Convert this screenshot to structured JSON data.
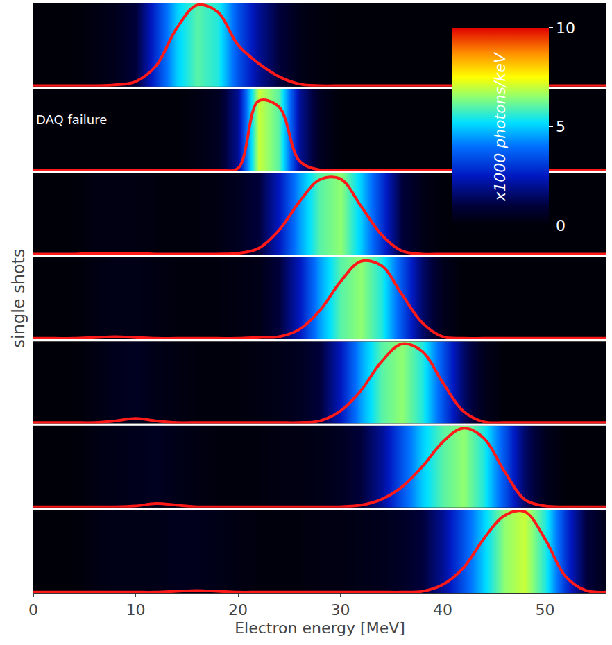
{
  "chart_data": {
    "type": "heatmap",
    "x_label": "Electron energy [MeV]",
    "y_label": "single shots",
    "tick_labels": "x",
    "xlim": [
      0,
      56
    ],
    "xticks": [
      0,
      10,
      20,
      30,
      40,
      50
    ],
    "ylim": [
      0,
      1
    ],
    "x": [
      0,
      2,
      4,
      6,
      8,
      10,
      12,
      14,
      16,
      18,
      20,
      22,
      24,
      26,
      28,
      30,
      32,
      34,
      36,
      38,
      40,
      42,
      44,
      46,
      48,
      50,
      52,
      54,
      56
    ],
    "colorbar": {
      "title": "x1000 photons/keV",
      "range": [
        0,
        10
      ],
      "ticks": [
        0,
        5,
        10
      ]
    },
    "series": [
      {
        "color": "#ff1a1a",
        "values": [
          0.01,
          0.01,
          0.01,
          0.01,
          0.02,
          0.06,
          0.25,
          0.7,
          0.98,
          0.9,
          0.5,
          0.28,
          0.12,
          0.03,
          0.01,
          0.01,
          0.01,
          0.01,
          0.01,
          0.01,
          0.01,
          0.01,
          0.01,
          0.01,
          0.01,
          0.01,
          0.01,
          0.01,
          0.01
        ],
        "cells": [
          0,
          0,
          0,
          0.2,
          0.4,
          1,
          3,
          5,
          6,
          5.5,
          3.5,
          2,
          1,
          0.3,
          0.1,
          0,
          0,
          0,
          0,
          0,
          0,
          0,
          0,
          0,
          0,
          0,
          0,
          0,
          0
        ]
      },
      {
        "color": "#ff1a1a",
        "annotation": "DAQ failure",
        "values": [
          0.01,
          0.01,
          0.01,
          0.01,
          0.01,
          0.01,
          0.01,
          0.01,
          0.01,
          0.01,
          0.03,
          0.85,
          0.78,
          0.12,
          0.01,
          0.01,
          0.01,
          0.01,
          0.01,
          0.01,
          0.01,
          0.01,
          0.01,
          0.01,
          0.01,
          0.01,
          0.01,
          0.01,
          0.01
        ],
        "cells": [
          0,
          0,
          0,
          0,
          0,
          0,
          0,
          0,
          0.2,
          0.5,
          2,
          7,
          6,
          2,
          0.5,
          0,
          0,
          0,
          0,
          0,
          0,
          0,
          0,
          0,
          0,
          0,
          0,
          0,
          0
        ]
      },
      {
        "color": "#ff1a1a",
        "values": [
          0.01,
          0.01,
          0.01,
          0.02,
          0.02,
          0.02,
          0.01,
          0.01,
          0.01,
          0.01,
          0.02,
          0.08,
          0.3,
          0.65,
          0.92,
          0.93,
          0.6,
          0.25,
          0.05,
          0.01,
          0.01,
          0.01,
          0.01,
          0.01,
          0.01,
          0.01,
          0.01,
          0.01,
          0.01
        ],
        "cells": [
          0,
          0,
          0,
          0.2,
          0.2,
          0.2,
          0.1,
          0.1,
          0.1,
          0.2,
          0.5,
          1,
          2.5,
          4.5,
          6,
          6.5,
          5,
          3,
          1,
          0.3,
          0,
          0,
          0,
          0,
          0,
          0,
          0,
          0,
          0
        ]
      },
      {
        "color": "#ff1a1a",
        "values": [
          0.01,
          0.01,
          0.01,
          0.02,
          0.03,
          0.02,
          0.01,
          0.01,
          0.01,
          0.01,
          0.01,
          0.02,
          0.03,
          0.12,
          0.35,
          0.7,
          0.95,
          0.9,
          0.55,
          0.2,
          0.03,
          0.01,
          0.01,
          0.01,
          0.01,
          0.01,
          0.01,
          0.01,
          0.01
        ],
        "cells": [
          0,
          0,
          0,
          0.2,
          0.3,
          0.3,
          0.2,
          0.1,
          0.1,
          0.1,
          0.2,
          0.3,
          1,
          2.5,
          4.5,
          6,
          6.5,
          5.5,
          3.5,
          1.5,
          0.4,
          0,
          0,
          0,
          0,
          0,
          0,
          0,
          0
        ]
      },
      {
        "color": "#ff1a1a",
        "values": [
          0.01,
          0.01,
          0.01,
          0.01,
          0.03,
          0.06,
          0.03,
          0.01,
          0.01,
          0.01,
          0.01,
          0.01,
          0.01,
          0.01,
          0.03,
          0.15,
          0.4,
          0.75,
          0.97,
          0.88,
          0.5,
          0.15,
          0.02,
          0.01,
          0.01,
          0.01,
          0.01,
          0.01,
          0.01
        ],
        "cells": [
          0,
          0,
          0,
          0.2,
          0.4,
          0.5,
          0.3,
          0.2,
          0.1,
          0.1,
          0.1,
          0.2,
          0.3,
          0.5,
          1,
          2.5,
          4.5,
          6,
          6.5,
          5.5,
          3.5,
          1.5,
          0.4,
          0,
          0,
          0,
          0,
          0,
          0
        ]
      },
      {
        "color": "#ff1a1a",
        "values": [
          0.01,
          0.01,
          0.01,
          0.01,
          0.01,
          0.02,
          0.05,
          0.03,
          0.01,
          0.01,
          0.01,
          0.01,
          0.01,
          0.01,
          0.01,
          0.01,
          0.03,
          0.1,
          0.25,
          0.5,
          0.8,
          0.97,
          0.85,
          0.45,
          0.1,
          0.02,
          0.01,
          0.01,
          0.01
        ],
        "cells": [
          0,
          0,
          0,
          0.2,
          0.3,
          0.4,
          0.5,
          0.3,
          0.2,
          0.1,
          0.1,
          0.1,
          0.2,
          0.2,
          0.3,
          0.5,
          1,
          2,
          3.5,
          5,
          6,
          6.5,
          5.5,
          3.5,
          1.5,
          0.4,
          0,
          0,
          0
        ]
      },
      {
        "color": "#ff1a1a",
        "values": [
          0.01,
          0.01,
          0.01,
          0.01,
          0.01,
          0.01,
          0.01,
          0.02,
          0.03,
          0.02,
          0.01,
          0.01,
          0.01,
          0.01,
          0.01,
          0.01,
          0.01,
          0.01,
          0.01,
          0.02,
          0.1,
          0.3,
          0.65,
          0.93,
          0.98,
          0.65,
          0.2,
          0.03,
          0.01
        ],
        "cells": [
          0,
          0,
          0,
          0.2,
          0.3,
          0.3,
          0.3,
          0.4,
          0.4,
          0.3,
          0.2,
          0.1,
          0.1,
          0.1,
          0.2,
          0.2,
          0.3,
          0.4,
          0.6,
          1,
          2,
          3.5,
          5,
          6.5,
          7,
          5.5,
          3,
          1,
          0.3
        ]
      }
    ]
  }
}
